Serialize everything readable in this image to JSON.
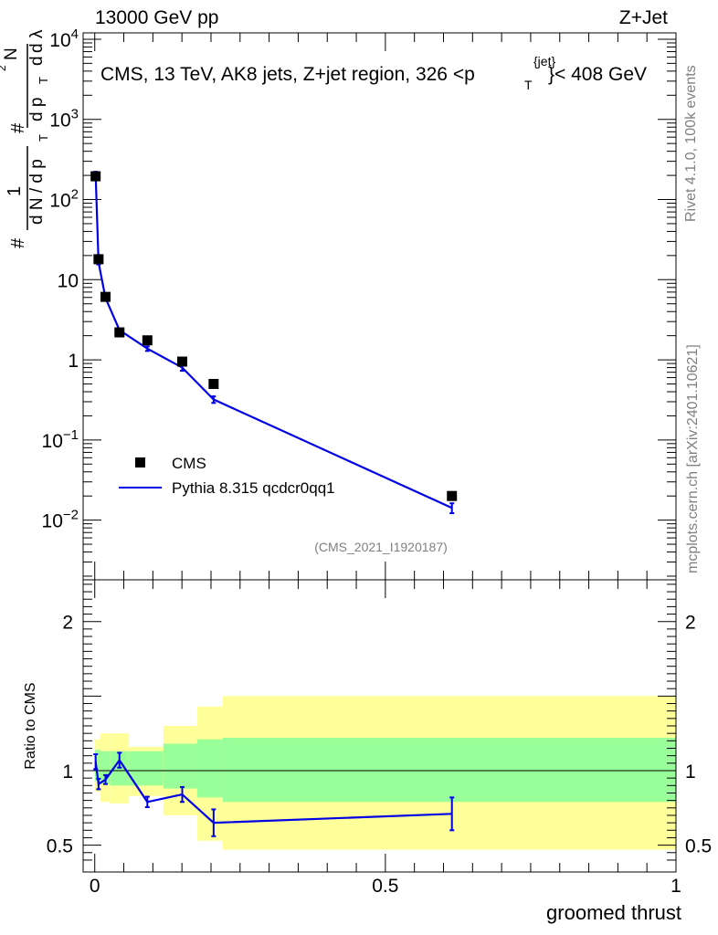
{
  "header": {
    "left": "13000 GeV pp",
    "right": "Z+Jet"
  },
  "side": {
    "rivet": "Rivet 4.1.0,  100k events",
    "mcplots": "mcplots.cern.ch [arXiv:2401.10621]"
  },
  "chart_data": [
    {
      "type": "scatter",
      "panel": "main",
      "title": "CMS, 13 TeV, AK8 jets, Z+jet region, 326 <p_T^{jet}< 408 GeV",
      "title_main": "CMS, 13 TeV, AK8 jets, Z+jet region, 326 <p",
      "title_sup": "{jet}",
      "title_sub": "T",
      "title_end": "}< 408 GeV",
      "ylabel": "1/(dN/dp_T) d²N/(dp_T dλ)",
      "ylabel_parts": [
        "#",
        "1",
        "d N / d p",
        "T",
        "#",
        "d p",
        "T",
        "d",
        "2",
        "N",
        "d λ"
      ],
      "xlim": [
        -0.02,
        1.0
      ],
      "ylim": [
        0.0018,
        12000
      ],
      "yscale": "log",
      "ytick_labels": [
        {
          "value": 0.01,
          "base": "10",
          "exp": "−2"
        },
        {
          "value": 0.1,
          "base": "10",
          "exp": "−1"
        },
        {
          "value": 1,
          "base": "1",
          "exp": ""
        },
        {
          "value": 10,
          "base": "10",
          "exp": ""
        },
        {
          "value": 100,
          "base": "10",
          "exp": "2"
        },
        {
          "value": 1000,
          "base": "10",
          "exp": "3"
        },
        {
          "value": 10000,
          "base": "10",
          "exp": "4"
        }
      ],
      "watermark": "(CMS_2021_I1920187)",
      "legend": [
        "CMS",
        "Pythia 8.315 qcdcr0qq1"
      ],
      "series": [
        {
          "name": "CMS",
          "x": [
            0.0015,
            0.0065,
            0.0185,
            0.0425,
            0.0905,
            0.1505,
            0.2045,
            0.6145
          ],
          "values": [
            195,
            18,
            6.1,
            2.2,
            1.75,
            0.95,
            0.5,
            0.02
          ]
        },
        {
          "name": "Pythia 8.315 qcdcr0qq1",
          "x": [
            0.0015,
            0.0065,
            0.0185,
            0.0425,
            0.0905,
            0.1505,
            0.2045,
            0.6145
          ],
          "values": [
            210,
            16.5,
            5.9,
            2.35,
            1.38,
            0.8,
            0.32,
            0.0142
          ],
          "err": [
            12,
            1.0,
            0.3,
            0.12,
            0.09,
            0.07,
            0.03,
            0.002
          ]
        }
      ]
    },
    {
      "type": "line",
      "panel": "ratio",
      "xlabel": "groomed thrust",
      "ylabel": "Ratio to CMS",
      "xlim": [
        -0.02,
        1.0
      ],
      "ylim": [
        0.32,
        2.28
      ],
      "yticks": [
        "2",
        "1",
        "0.5"
      ],
      "ytick_values": [
        2,
        1,
        0.5
      ],
      "xticks": [
        "0",
        "0.5",
        "1"
      ],
      "xtick_values": [
        0,
        0.5,
        1
      ],
      "bands": {
        "edges": [
          0,
          0.004,
          0.01,
          0.026,
          0.058,
          0.118,
          0.176,
          0.22,
          1.0
        ],
        "green": [
          [
            0.93,
            1.14
          ],
          [
            0.93,
            1.14
          ],
          [
            0.91,
            1.13
          ],
          [
            0.9,
            1.13
          ],
          [
            0.9,
            1.13
          ],
          [
            0.88,
            1.18
          ],
          [
            0.82,
            1.21
          ],
          [
            0.79,
            1.22
          ]
        ],
        "yellow": [
          [
            0.86,
            1.21
          ],
          [
            0.86,
            1.21
          ],
          [
            0.79,
            1.25
          ],
          [
            0.78,
            1.25
          ],
          [
            0.83,
            1.16
          ],
          [
            0.7,
            1.3
          ],
          [
            0.53,
            1.43
          ],
          [
            0.47,
            1.5
          ]
        ]
      },
      "series": [
        {
          "name": "Pythia 8.315 qcdcr0qq1 / CMS",
          "x": [
            0.0015,
            0.0065,
            0.0185,
            0.0425,
            0.0905,
            0.1505,
            0.2045,
            0.6145
          ],
          "values": [
            1.06,
            0.91,
            0.94,
            1.07,
            0.79,
            0.84,
            0.65,
            0.71
          ],
          "err": [
            0.05,
            0.035,
            0.03,
            0.05,
            0.035,
            0.05,
            0.09,
            0.11
          ]
        }
      ]
    }
  ],
  "colors": {
    "data": "#000000",
    "mc": "#0000e6",
    "band_inner": "#99ff99",
    "band_outer": "#ffff99",
    "side_text": "#808080"
  }
}
